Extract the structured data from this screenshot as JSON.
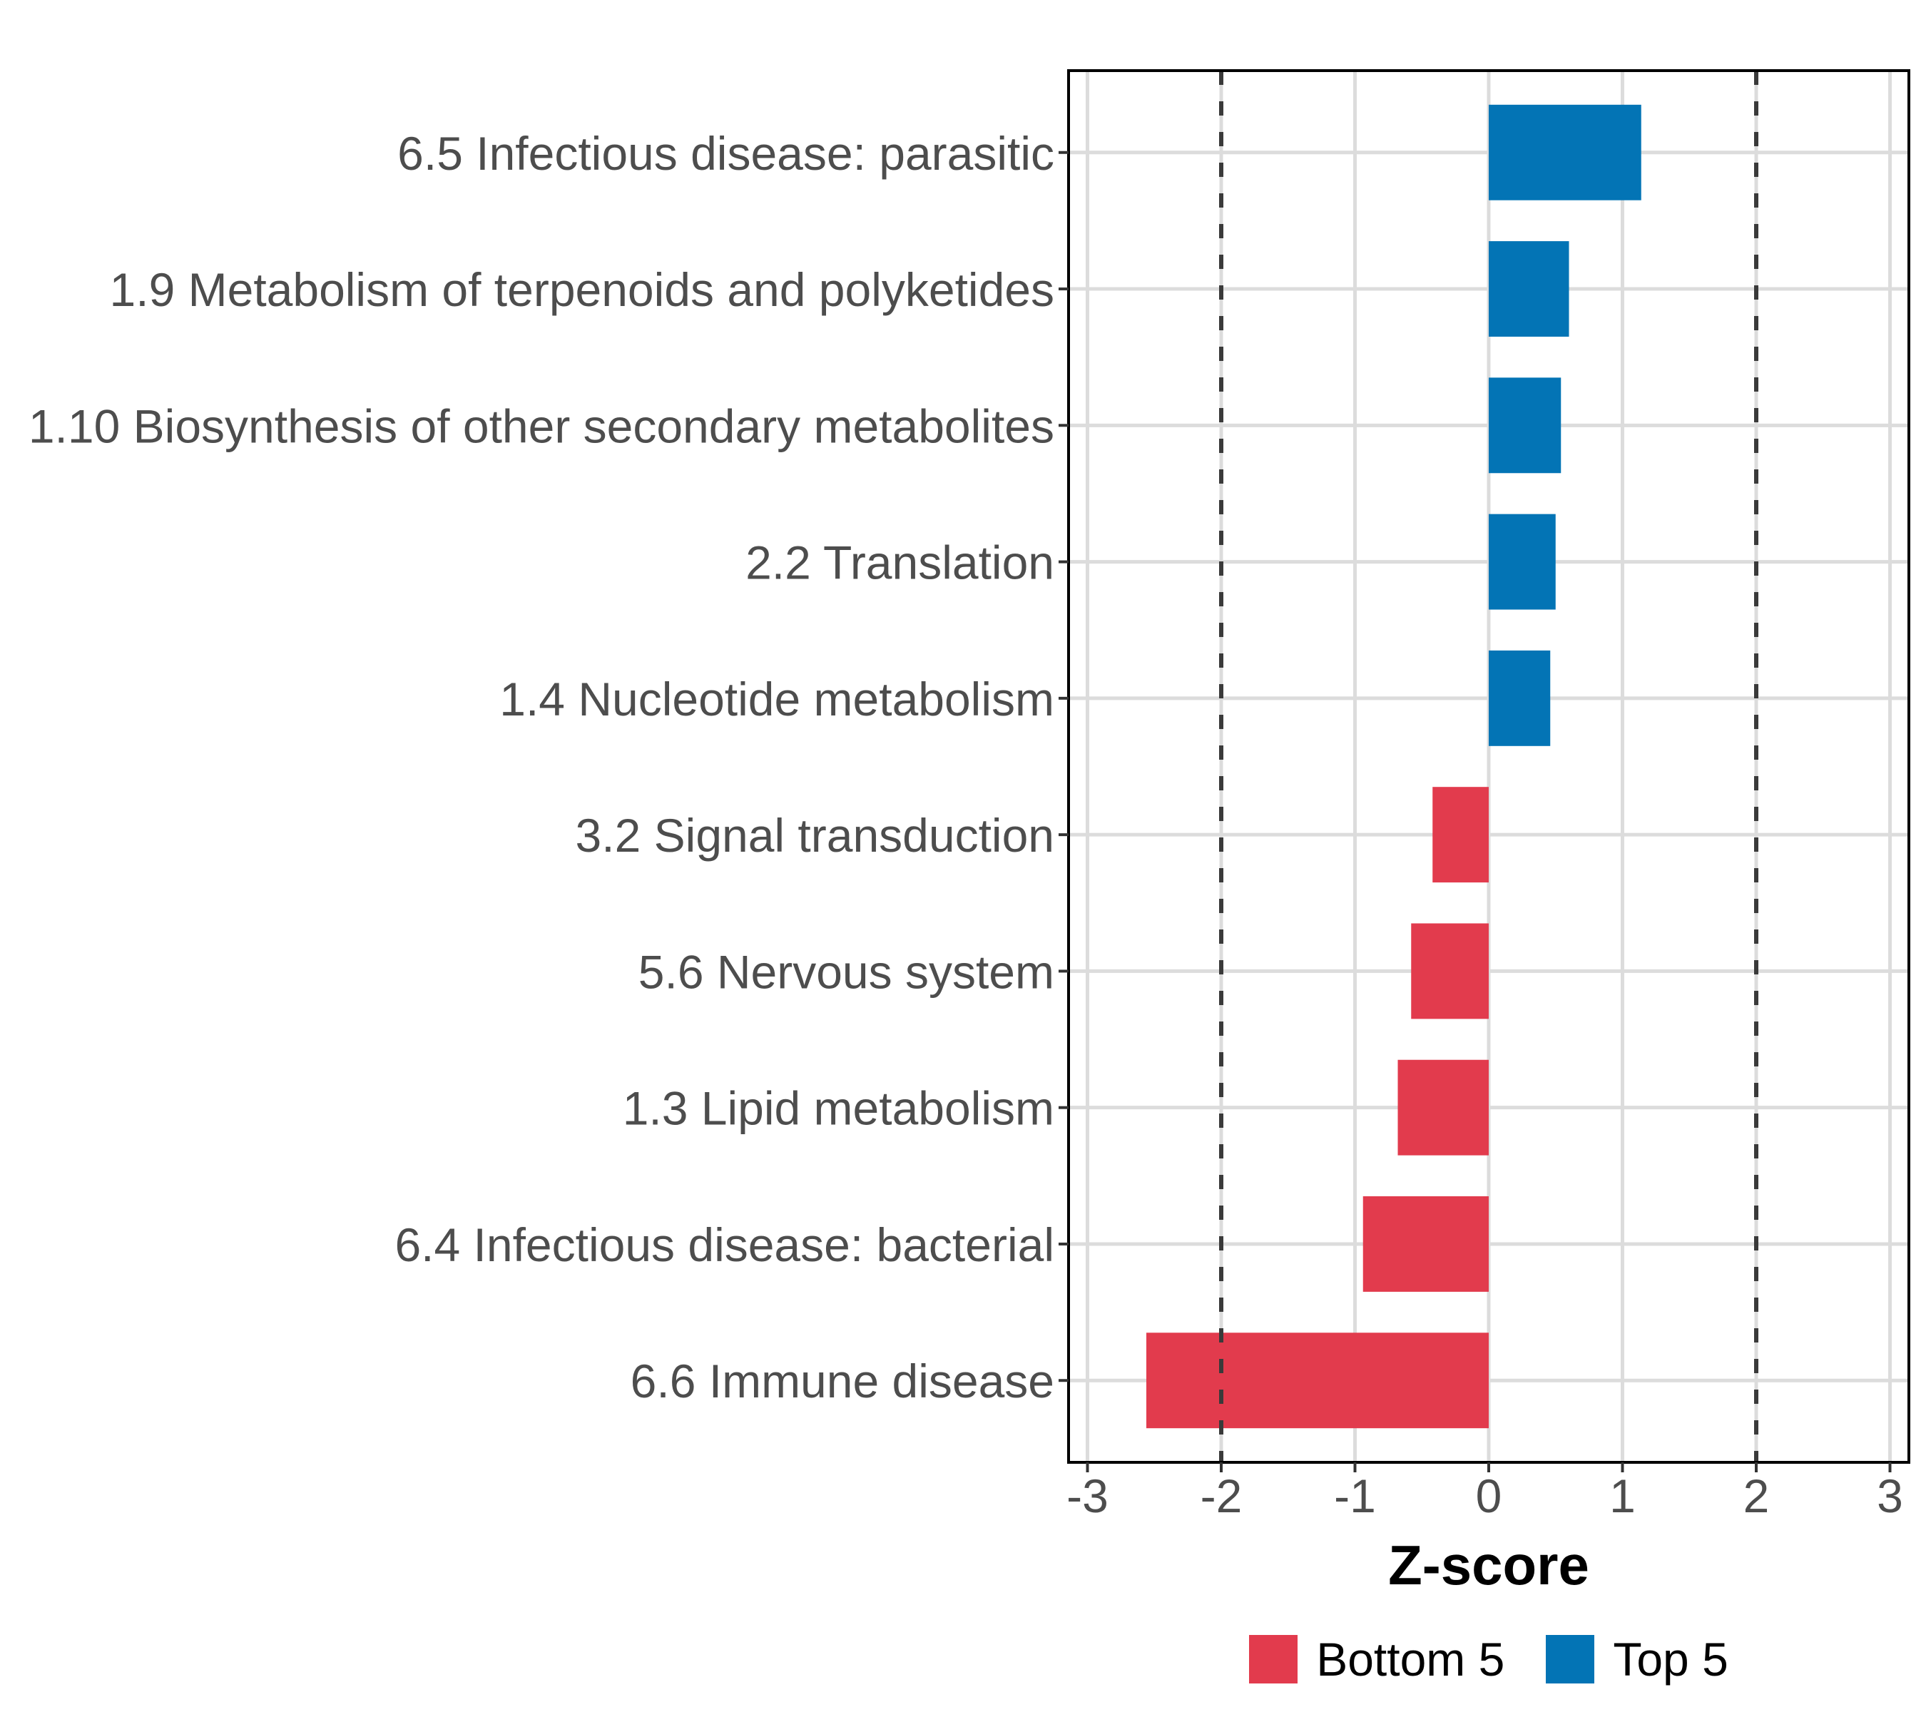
{
  "chart_data": {
    "type": "bar",
    "orientation": "horizontal",
    "xlabel": "Z-score",
    "bars": [
      {
        "category": "6.5 Infectious disease: parasitic",
        "value": 1.14,
        "group": "Top 5"
      },
      {
        "category": "1.9 Metabolism of terpenoids and polyketides",
        "value": 0.6,
        "group": "Top 5"
      },
      {
        "category": "1.10 Biosynthesis of other secondary metabolites",
        "value": 0.54,
        "group": "Top 5"
      },
      {
        "category": "2.2 Translation",
        "value": 0.5,
        "group": "Top 5"
      },
      {
        "category": "1.4 Nucleotide metabolism",
        "value": 0.46,
        "group": "Top 5"
      },
      {
        "category": "3.2 Signal transduction",
        "value": -0.42,
        "group": "Bottom 5"
      },
      {
        "category": "5.6 Nervous system",
        "value": -0.58,
        "group": "Bottom 5"
      },
      {
        "category": "1.3 Lipid metabolism",
        "value": -0.68,
        "group": "Bottom 5"
      },
      {
        "category": "6.4 Infectious disease: bacterial",
        "value": -0.94,
        "group": "Bottom 5"
      },
      {
        "category": "6.6 Immune disease",
        "value": -2.56,
        "group": "Bottom 5"
      }
    ],
    "x_ticks": [
      -3,
      -2,
      -1,
      0,
      1,
      2,
      3
    ],
    "xlim": [
      -3.14,
      3.14
    ],
    "reference_lines": [
      -2,
      2
    ],
    "bar_width_fraction": 0.7,
    "grid": {
      "vertical_major": true,
      "horizontal_category": true,
      "minor": false
    },
    "legend": {
      "position": "bottom",
      "items": [
        {
          "label": "Bottom 5",
          "color": "#E23B4D"
        },
        {
          "label": "Top 5",
          "color": "#0374B5"
        }
      ]
    },
    "colors": {
      "top5": "#0374B5",
      "bottom5": "#E23B4D",
      "gridline": "#DCDCDC",
      "reference_line": "#3A3A3A",
      "tick_mark": "#333333",
      "tick_label": "#4D4D4D",
      "category_label": "#4D4D4D",
      "axis_title": "#000000",
      "panel_border": "#000000",
      "background": "#FFFFFF"
    }
  }
}
